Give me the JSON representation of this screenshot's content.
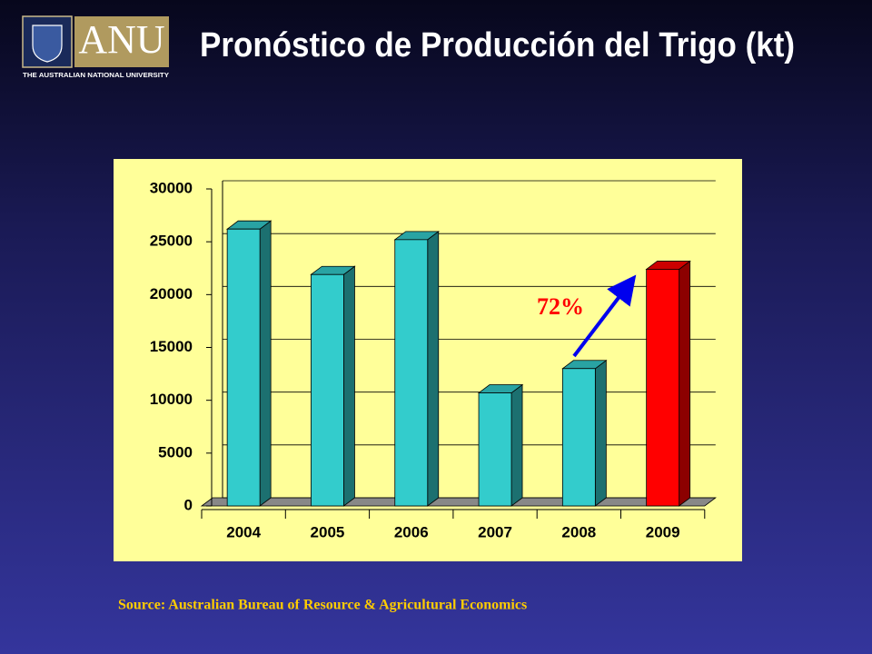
{
  "logo": {
    "mark": "ANU",
    "caption": "THE AUSTRALIAN NATIONAL UNIVERSITY"
  },
  "title": "Pronóstico de Producción del Trigo (kt)",
  "source": "Source: Australian Bureau of Resource & Agricultural Economics",
  "chart_data": {
    "type": "bar",
    "categories": [
      "2004",
      "2005",
      "2006",
      "2007",
      "2008",
      "2009"
    ],
    "values": [
      26200,
      21900,
      25200,
      10700,
      13000,
      22400
    ],
    "colors": [
      "#33cccc",
      "#33cccc",
      "#33cccc",
      "#33cccc",
      "#33cccc",
      "#ff0000"
    ],
    "ylim": [
      0,
      30000
    ],
    "yticks": [
      0,
      5000,
      10000,
      15000,
      20000,
      25000,
      30000
    ],
    "grid": true,
    "annotation": "72%"
  }
}
